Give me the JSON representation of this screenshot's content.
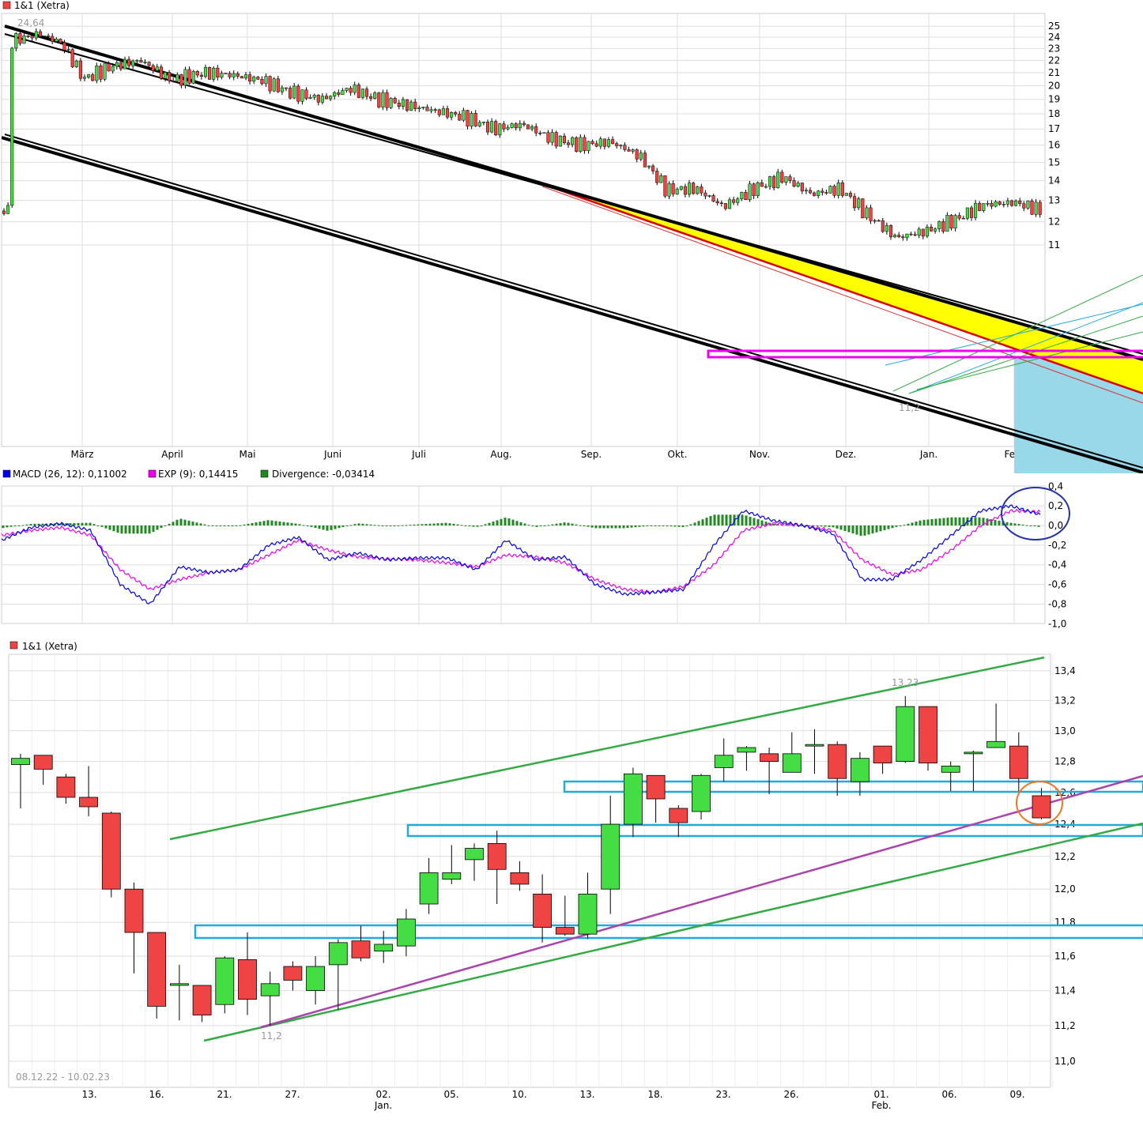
{
  "colors": {
    "up": "#44dd44",
    "down": "#ee4444",
    "grid": "#dddddd",
    "macd": "#0000ee",
    "exp": "#ee00ee",
    "divergence": "#228822",
    "channel": "#000000",
    "support": "#22aadd",
    "green_line": "#33aa44",
    "purple_line": "#aa44aa",
    "yellow_zone": "#ffff00",
    "cyan_zone": "#99d8e8"
  },
  "chart_data": [
    {
      "type": "candlestick",
      "title": "1&1 (Xetra)",
      "x_tick_labels": [
        "März",
        "April",
        "Mai",
        "Juni",
        "Juli",
        "Aug.",
        "Sep.",
        "Okt.",
        "Nov.",
        "Dez.",
        "Jan.",
        "Feb."
      ],
      "y_tick_labels": [
        "25",
        "24",
        "23",
        "22",
        "21",
        "20",
        "19",
        "18",
        "17",
        "16",
        "15",
        "14",
        "13",
        "12",
        "11"
      ],
      "ylim": [
        10.2,
        25.5
      ],
      "y_scale": "log",
      "annotations": [
        "24,64",
        "11,2"
      ],
      "overview_close": [
        [
          "2022-02-10",
          23.6
        ],
        [
          "2022-02-20",
          24.3
        ],
        [
          "2022-02-28",
          23.5
        ],
        [
          "2022-03-08",
          20.5
        ],
        [
          "2022-03-18",
          21.5
        ],
        [
          "2022-03-28",
          22.0
        ],
        [
          "2022-04-08",
          20.4
        ],
        [
          "2022-04-20",
          21.0
        ],
        [
          "2022-04-30",
          20.8
        ],
        [
          "2022-05-10",
          20.4
        ],
        [
          "2022-05-20",
          19.5
        ],
        [
          "2022-05-31",
          19.0
        ],
        [
          "2022-06-10",
          19.8
        ],
        [
          "2022-06-20",
          19.0
        ],
        [
          "2022-06-30",
          18.6
        ],
        [
          "2022-07-10",
          18.2
        ],
        [
          "2022-07-20",
          17.8
        ],
        [
          "2022-07-31",
          17.0
        ],
        [
          "2022-08-10",
          17.3
        ],
        [
          "2022-08-20",
          16.4
        ],
        [
          "2022-08-31",
          16.0
        ],
        [
          "2022-09-10",
          16.2
        ],
        [
          "2022-09-20",
          15.4
        ],
        [
          "2022-09-30",
          13.5
        ],
        [
          "2022-10-10",
          13.6
        ],
        [
          "2022-10-20",
          12.7
        ],
        [
          "2022-10-31",
          13.6
        ],
        [
          "2022-11-10",
          14.2
        ],
        [
          "2022-11-20",
          13.3
        ],
        [
          "2022-11-30",
          13.6
        ],
        [
          "2022-12-10",
          12.3
        ],
        [
          "2022-12-20",
          11.3
        ],
        [
          "2022-12-31",
          11.6
        ],
        [
          "2023-01-10",
          12.1
        ],
        [
          "2023-01-20",
          12.8
        ],
        [
          "2023-01-31",
          12.9
        ],
        [
          "2023-02-10",
          12.5
        ]
      ]
    },
    {
      "type": "line",
      "title": "MACD",
      "legend": [
        {
          "name": "MACD (26, 12): 0,11002",
          "color": "#0000ee"
        },
        {
          "name": "EXP (9): 0,14415",
          "color": "#ee00ee"
        },
        {
          "name": "Divergence: -0,03414",
          "color": "#228822"
        }
      ],
      "y_tick_labels": [
        "0,4",
        "0,2",
        "0,0",
        "-0,2",
        "-0,4",
        "-0,6",
        "-0,8",
        "-1,0"
      ],
      "ylim": [
        -1.0,
        0.4
      ],
      "macd": [
        -0.15,
        -0.02,
        0.02,
        -0.05,
        -0.6,
        -0.8,
        -0.42,
        -0.48,
        -0.45,
        -0.2,
        -0.12,
        -0.35,
        -0.28,
        -0.35,
        -0.33,
        -0.33,
        -0.45,
        -0.15,
        -0.35,
        -0.32,
        -0.6,
        -0.7,
        -0.68,
        -0.65,
        -0.2,
        0.15,
        0.05,
        0.0,
        -0.08,
        -0.55,
        -0.55,
        -0.35,
        -0.1,
        0.15,
        0.2,
        0.11
      ],
      "exp": [
        -0.1,
        -0.05,
        -0.02,
        -0.1,
        -0.45,
        -0.65,
        -0.55,
        -0.48,
        -0.45,
        -0.3,
        -0.15,
        -0.25,
        -0.32,
        -0.34,
        -0.35,
        -0.38,
        -0.42,
        -0.3,
        -0.32,
        -0.38,
        -0.55,
        -0.65,
        -0.68,
        -0.62,
        -0.4,
        -0.05,
        0.02,
        0.0,
        -0.05,
        -0.35,
        -0.5,
        -0.45,
        -0.25,
        0.0,
        0.15,
        0.14
      ]
    },
    {
      "type": "candlestick",
      "title": "1&1 (Xetra)",
      "date_range": "08.12.22 - 10.02.23",
      "x_tick_labels": [
        "13.",
        "16.",
        "21.",
        "27.",
        "02.",
        "Jan.",
        "05.",
        "10.",
        "13.",
        "18.",
        "23.",
        "26.",
        "01.",
        "Feb.",
        "06.",
        "09."
      ],
      "y_tick_labels": [
        "13,4",
        "13,2",
        "13,0",
        "12,8",
        "12,6",
        "12,4",
        "12,2",
        "12,0",
        "11,8",
        "11,6",
        "11,4",
        "11,2",
        "11,0"
      ],
      "ylim": [
        10.9,
        13.5
      ],
      "y_scale": "log",
      "annotations": [
        "13,23",
        "11,2"
      ],
      "candles": [
        {
          "date": "08.12.",
          "o": 12.78,
          "h": 12.85,
          "l": 12.5,
          "c": 12.82
        },
        {
          "date": "09.12.",
          "o": 12.84,
          "h": 12.84,
          "l": 12.65,
          "c": 12.75
        },
        {
          "date": "12.12.",
          "o": 12.7,
          "h": 12.72,
          "l": 12.53,
          "c": 12.57
        },
        {
          "date": "13.12.",
          "o": 12.57,
          "h": 12.77,
          "l": 12.45,
          "c": 12.51
        },
        {
          "date": "14.12.",
          "o": 12.47,
          "h": 12.48,
          "l": 11.95,
          "c": 12.0
        },
        {
          "date": "15.12.",
          "o": 12.0,
          "h": 12.04,
          "l": 11.5,
          "c": 11.74
        },
        {
          "date": "16.12.",
          "o": 11.74,
          "h": 11.74,
          "l": 11.24,
          "c": 11.31
        },
        {
          "date": "19.12.",
          "o": 11.43,
          "h": 11.55,
          "l": 11.23,
          "c": 11.44
        },
        {
          "date": "20.12.",
          "o": 11.43,
          "h": 11.43,
          "l": 11.22,
          "c": 11.26
        },
        {
          "date": "21.12.",
          "o": 11.32,
          "h": 11.6,
          "l": 11.27,
          "c": 11.59
        },
        {
          "date": "22.12.",
          "o": 11.58,
          "h": 11.74,
          "l": 11.26,
          "c": 11.35
        },
        {
          "date": "23.12.",
          "o": 11.37,
          "h": 11.51,
          "l": 11.2,
          "c": 11.44
        },
        {
          "date": "27.12.",
          "o": 11.54,
          "h": 11.57,
          "l": 11.4,
          "c": 11.46
        },
        {
          "date": "28.12.",
          "o": 11.4,
          "h": 11.6,
          "l": 11.32,
          "c": 11.54
        },
        {
          "date": "29.12.",
          "o": 11.55,
          "h": 11.7,
          "l": 11.29,
          "c": 11.68
        },
        {
          "date": "30.12.",
          "o": 11.69,
          "h": 11.78,
          "l": 11.57,
          "c": 11.59
        },
        {
          "date": "02.01.",
          "o": 11.63,
          "h": 11.75,
          "l": 11.56,
          "c": 11.67
        },
        {
          "date": "03.01.",
          "o": 11.66,
          "h": 11.88,
          "l": 11.6,
          "c": 11.82
        },
        {
          "date": "04.01.",
          "o": 11.91,
          "h": 12.19,
          "l": 11.85,
          "c": 12.1
        },
        {
          "date": "05.01.",
          "o": 12.06,
          "h": 12.27,
          "l": 12.03,
          "c": 12.1
        },
        {
          "date": "06.01.",
          "o": 12.18,
          "h": 12.28,
          "l": 12.05,
          "c": 12.25
        },
        {
          "date": "09.01.",
          "o": 12.28,
          "h": 12.36,
          "l": 11.91,
          "c": 12.12
        },
        {
          "date": "10.01.",
          "o": 12.1,
          "h": 12.17,
          "l": 11.99,
          "c": 12.03
        },
        {
          "date": "11.01.",
          "o": 11.97,
          "h": 12.09,
          "l": 11.68,
          "c": 11.77
        },
        {
          "date": "12.01.",
          "o": 11.77,
          "h": 11.96,
          "l": 11.72,
          "c": 11.73
        },
        {
          "date": "13.01.",
          "o": 11.73,
          "h": 12.1,
          "l": 11.7,
          "c": 11.97
        },
        {
          "date": "16.01.",
          "o": 12.0,
          "h": 12.58,
          "l": 11.85,
          "c": 12.4
        },
        {
          "date": "17.01.",
          "o": 12.4,
          "h": 12.76,
          "l": 12.32,
          "c": 12.72
        },
        {
          "date": "18.01.",
          "o": 12.71,
          "h": 12.71,
          "l": 12.41,
          "c": 12.56
        },
        {
          "date": "19.01.",
          "o": 12.5,
          "h": 12.52,
          "l": 12.32,
          "c": 12.41
        },
        {
          "date": "20.01.",
          "o": 12.48,
          "h": 12.72,
          "l": 12.43,
          "c": 12.71
        },
        {
          "date": "23.01.",
          "o": 12.76,
          "h": 12.95,
          "l": 12.67,
          "c": 12.84
        },
        {
          "date": "24.01.",
          "o": 12.86,
          "h": 12.9,
          "l": 12.74,
          "c": 12.89
        },
        {
          "date": "25.01.",
          "o": 12.85,
          "h": 12.89,
          "l": 12.59,
          "c": 12.8
        },
        {
          "date": "26.01.",
          "o": 12.73,
          "h": 12.99,
          "l": 12.73,
          "c": 12.85
        },
        {
          "date": "27.01.",
          "o": 12.9,
          "h": 13.01,
          "l": 12.72,
          "c": 12.91
        },
        {
          "date": "30.01.",
          "o": 12.91,
          "h": 12.93,
          "l": 12.58,
          "c": 12.69
        },
        {
          "date": "31.01.",
          "o": 12.67,
          "h": 12.86,
          "l": 12.58,
          "c": 12.82
        },
        {
          "date": "01.02.",
          "o": 12.9,
          "h": 12.9,
          "l": 12.72,
          "c": 12.79
        },
        {
          "date": "02.02.",
          "o": 12.8,
          "h": 13.23,
          "l": 12.79,
          "c": 13.16
        },
        {
          "date": "03.02.",
          "o": 13.16,
          "h": 13.16,
          "l": 12.74,
          "c": 12.79
        },
        {
          "date": "06.02.",
          "o": 12.73,
          "h": 12.8,
          "l": 12.61,
          "c": 12.77
        },
        {
          "date": "07.02.",
          "o": 12.85,
          "h": 12.87,
          "l": 12.61,
          "c": 12.86
        },
        {
          "date": "08.02.",
          "o": 12.89,
          "h": 13.18,
          "l": 12.89,
          "c": 12.93
        },
        {
          "date": "09.02.",
          "o": 12.9,
          "h": 12.99,
          "l": 12.61,
          "c": 12.69
        },
        {
          "date": "10.02.",
          "o": 12.58,
          "h": 12.63,
          "l": 12.43,
          "c": 12.44
        }
      ]
    }
  ]
}
